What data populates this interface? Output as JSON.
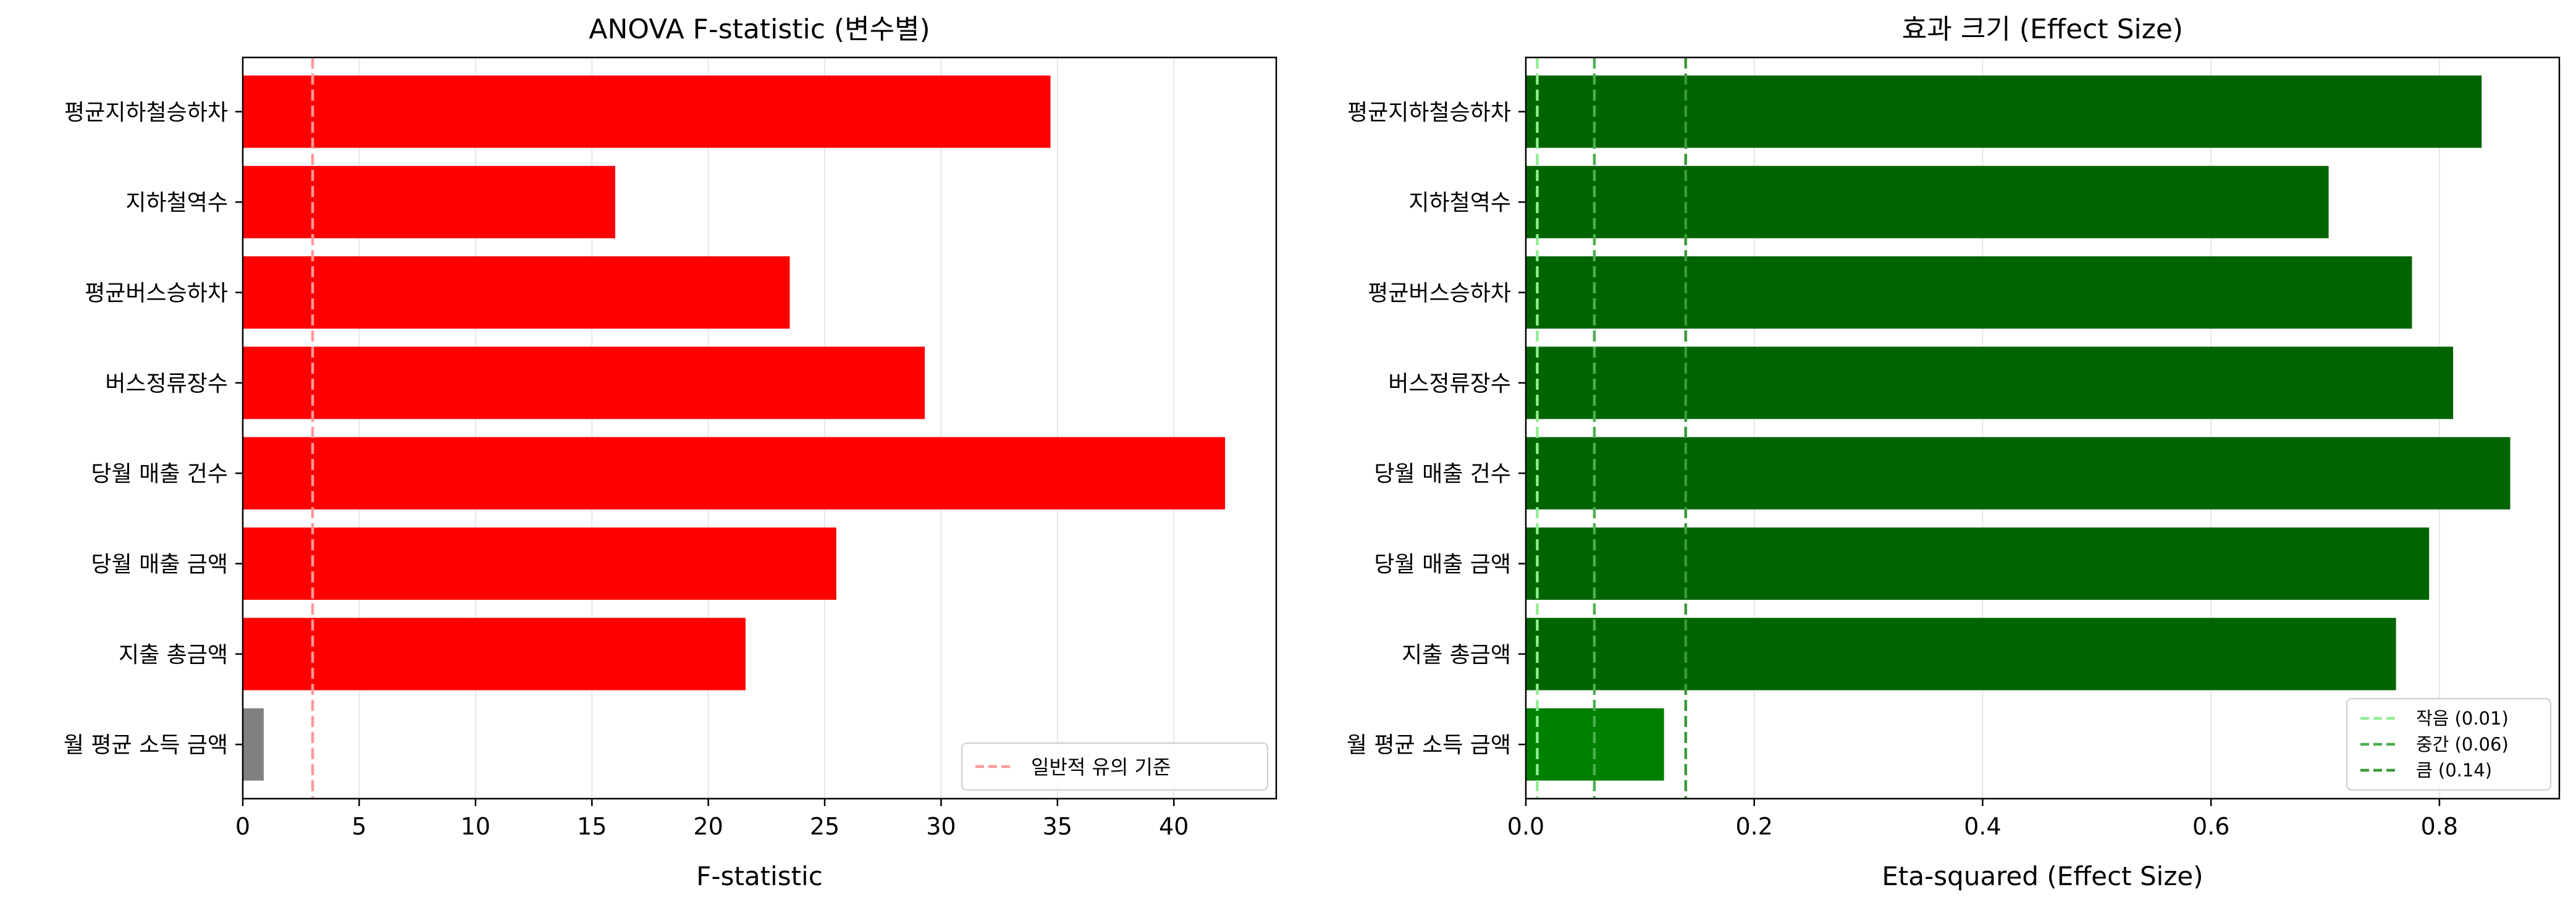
{
  "chart_data": [
    {
      "type": "bar",
      "orientation": "horizontal",
      "title": "ANOVA F-statistic (변수별)",
      "xlabel": "F-statistic",
      "ylabel": "",
      "categories": [
        "평균지하철승하차",
        "지하철역수",
        "평균버스승하차",
        "버스정류장수",
        "당월 매출 건수",
        "당월 매출 금액",
        "지출 총금액",
        "월 평균 소득 금액"
      ],
      "values": [
        34.7,
        16.0,
        23.5,
        29.3,
        42.2,
        25.5,
        21.6,
        0.9
      ],
      "bar_colors": [
        "#ff0000",
        "#ff0000",
        "#ff0000",
        "#ff0000",
        "#ff0000",
        "#ff0000",
        "#ff0000",
        "#808080"
      ],
      "xlim": [
        0,
        44.4
      ],
      "xticks": [
        0,
        5,
        10,
        15,
        20,
        25,
        30,
        35,
        40
      ],
      "grid": "x",
      "reference_lines": [
        {
          "x": 3.0,
          "label": "일반적 유의 기준",
          "color": "#ff9999",
          "style": "dashed"
        }
      ],
      "legend": "bottom-right"
    },
    {
      "type": "bar",
      "orientation": "horizontal",
      "title": "효과 크기 (Effect Size)",
      "xlabel": "Eta-squared (Effect Size)",
      "ylabel": "",
      "categories": [
        "평균지하철승하차",
        "지하철역수",
        "평균버스승하차",
        "버스정류장수",
        "당월 매출 건수",
        "당월 매출 금액",
        "지출 총금액",
        "월 평균 소득 금액"
      ],
      "values": [
        0.837,
        0.703,
        0.776,
        0.812,
        0.862,
        0.791,
        0.762,
        0.121
      ],
      "bar_colors": [
        "#006400",
        "#006400",
        "#006400",
        "#006400",
        "#006400",
        "#006400",
        "#006400",
        "#008000"
      ],
      "xlim": [
        0,
        0.905
      ],
      "xticks": [
        0.0,
        0.2,
        0.4,
        0.6,
        0.8
      ],
      "grid": "x",
      "reference_lines": [
        {
          "x": 0.01,
          "label": "작음 (0.01)",
          "color": "#90ee90",
          "style": "dashed"
        },
        {
          "x": 0.06,
          "label": "중간 (0.06)",
          "color": "#4caf50",
          "style": "dashed"
        },
        {
          "x": 0.14,
          "label": "큼 (0.14)",
          "color": "#3a9a3a",
          "style": "dashed"
        }
      ],
      "legend": "bottom-right"
    }
  ]
}
